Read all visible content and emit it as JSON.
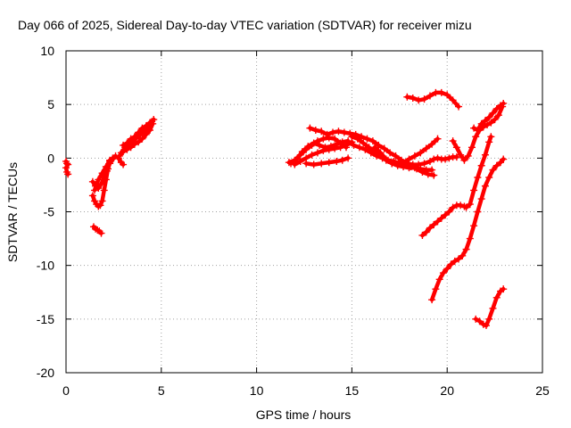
{
  "chart_data": {
    "type": "scatter",
    "title": "Day 066 of 2025, Sidereal Day-to-day VTEC variation (SDTVAR) for receiver mizu",
    "xlabel": "GPS time / hours",
    "ylabel": "SDTVAR / TECUs",
    "xlim": [
      0,
      25
    ],
    "ylim": [
      -20,
      10
    ],
    "x_ticks": [
      0,
      5,
      10,
      15,
      20,
      25
    ],
    "y_ticks": [
      10,
      5,
      0,
      -5,
      -10,
      -15,
      -20
    ],
    "grid": true,
    "marker": "+",
    "series_color": "#ff0000",
    "tracks": [
      [
        [
          0.0,
          -0.3
        ],
        [
          0.05,
          -0.5
        ],
        [
          0.1,
          -0.6
        ],
        [
          0.0,
          -0.9
        ],
        [
          0.05,
          -1.3
        ],
        [
          0.1,
          -1.5
        ]
      ],
      [
        [
          1.45,
          -6.4
        ],
        [
          1.55,
          -6.6
        ],
        [
          1.65,
          -6.7
        ],
        [
          1.75,
          -6.8
        ],
        [
          1.85,
          -7.0
        ]
      ],
      [
        [
          1.4,
          -3.5
        ],
        [
          1.5,
          -4.0
        ],
        [
          1.6,
          -4.3
        ],
        [
          1.7,
          -4.5
        ],
        [
          1.8,
          -4.4
        ],
        [
          1.9,
          -4.0
        ],
        [
          2.0,
          -3.0
        ],
        [
          2.1,
          -2.0
        ],
        [
          2.2,
          -1.0
        ],
        [
          2.3,
          -0.3
        ],
        [
          2.45,
          0.0
        ],
        [
          2.6,
          0.2
        ],
        [
          2.75,
          0.0
        ],
        [
          2.9,
          -0.4
        ],
        [
          3.0,
          -0.6
        ]
      ],
      [
        [
          1.4,
          -2.2
        ],
        [
          1.55,
          -2.6
        ],
        [
          1.7,
          -2.8
        ],
        [
          1.85,
          -2.4
        ],
        [
          2.0,
          -1.8
        ],
        [
          2.15,
          -1.2
        ],
        [
          2.3,
          -0.5
        ],
        [
          2.5,
          0.0
        ]
      ],
      [
        [
          1.5,
          -3.0
        ],
        [
          1.7,
          -2.0
        ],
        [
          1.9,
          -1.4
        ],
        [
          2.1,
          -0.8
        ],
        [
          2.3,
          -0.2
        ]
      ],
      [
        [
          2.9,
          0.5
        ],
        [
          3.1,
          1.0
        ],
        [
          3.3,
          1.2
        ],
        [
          3.5,
          1.6
        ],
        [
          3.7,
          1.9
        ],
        [
          3.9,
          2.2
        ],
        [
          4.1,
          2.5
        ],
        [
          4.3,
          2.9
        ],
        [
          4.5,
          3.4
        ]
      ],
      [
        [
          2.8,
          0.2
        ],
        [
          3.0,
          0.6
        ],
        [
          3.2,
          0.8
        ],
        [
          3.4,
          1.0
        ],
        [
          3.6,
          1.3
        ],
        [
          3.8,
          1.5
        ],
        [
          4.0,
          1.8
        ],
        [
          4.2,
          2.2
        ],
        [
          4.4,
          2.6
        ],
        [
          4.55,
          3.2
        ]
      ],
      [
        [
          3.0,
          1.2
        ],
        [
          3.2,
          1.4
        ],
        [
          3.4,
          1.8
        ],
        [
          3.6,
          2.0
        ],
        [
          3.8,
          2.4
        ],
        [
          4.0,
          2.8
        ],
        [
          4.2,
          3.0
        ],
        [
          4.4,
          3.3
        ],
        [
          4.6,
          3.6
        ]
      ],
      [
        [
          11.7,
          -0.4
        ],
        [
          12.0,
          -0.2
        ],
        [
          12.3,
          0.3
        ],
        [
          12.6,
          0.8
        ],
        [
          12.9,
          1.2
        ],
        [
          13.2,
          1.6
        ],
        [
          13.5,
          1.8
        ],
        [
          13.8,
          1.9
        ],
        [
          14.1,
          1.8
        ],
        [
          14.4,
          1.4
        ],
        [
          14.7,
          1.0
        ]
      ],
      [
        [
          11.8,
          -0.5
        ],
        [
          12.1,
          -0.1
        ],
        [
          12.4,
          0.6
        ],
        [
          12.7,
          1.1
        ],
        [
          13.0,
          1.4
        ],
        [
          13.3,
          1.2
        ],
        [
          13.6,
          1.0
        ],
        [
          13.9,
          1.1
        ],
        [
          14.2,
          1.3
        ],
        [
          14.5,
          1.5
        ],
        [
          14.8,
          1.6
        ]
      ],
      [
        [
          12.0,
          -0.6
        ],
        [
          12.3,
          -0.3
        ],
        [
          12.6,
          0.0
        ],
        [
          12.9,
          0.3
        ],
        [
          13.2,
          0.5
        ],
        [
          13.5,
          0.7
        ],
        [
          13.8,
          0.8
        ],
        [
          14.1,
          0.9
        ],
        [
          14.4,
          1.0
        ],
        [
          14.7,
          1.2
        ],
        [
          15.0,
          1.5
        ]
      ],
      [
        [
          12.6,
          -0.5
        ],
        [
          13.0,
          -0.6
        ],
        [
          13.4,
          -0.5
        ],
        [
          13.8,
          -0.4
        ],
        [
          14.2,
          -0.3
        ],
        [
          14.5,
          -0.2
        ],
        [
          14.8,
          0.0
        ]
      ],
      [
        [
          12.8,
          2.8
        ],
        [
          13.1,
          2.6
        ],
        [
          13.4,
          2.5
        ],
        [
          13.7,
          2.2
        ],
        [
          14.0,
          2.4
        ],
        [
          14.3,
          2.5
        ],
        [
          14.6,
          2.4
        ],
        [
          14.9,
          2.3
        ],
        [
          15.2,
          2.2
        ],
        [
          15.5,
          2.0
        ],
        [
          15.8,
          1.8
        ],
        [
          16.1,
          1.6
        ],
        [
          16.4,
          1.2
        ],
        [
          16.7,
          0.9
        ],
        [
          17.0,
          0.5
        ],
        [
          17.3,
          0.2
        ],
        [
          17.6,
          -0.2
        ],
        [
          17.9,
          -0.5
        ],
        [
          18.2,
          -0.6
        ],
        [
          18.5,
          -0.6
        ],
        [
          18.8,
          -0.5
        ],
        [
          19.1,
          -0.3
        ],
        [
          19.3,
          -0.1
        ],
        [
          19.5,
          0.0
        ],
        [
          19.7,
          -0.1
        ],
        [
          19.9,
          -0.1
        ],
        [
          20.1,
          0.0
        ],
        [
          20.3,
          0.1
        ],
        [
          20.5,
          0.1
        ]
      ],
      [
        [
          15.0,
          2.0
        ],
        [
          15.3,
          1.8
        ],
        [
          15.6,
          1.4
        ],
        [
          15.9,
          1.0
        ],
        [
          16.2,
          0.6
        ],
        [
          16.5,
          0.2
        ],
        [
          16.8,
          -0.2
        ],
        [
          17.1,
          -0.5
        ],
        [
          17.4,
          -0.7
        ],
        [
          17.7,
          -0.8
        ],
        [
          18.0,
          -0.9
        ],
        [
          18.3,
          -0.9
        ],
        [
          18.6,
          -1.0
        ],
        [
          18.9,
          -1.1
        ],
        [
          19.2,
          -1.1
        ]
      ],
      [
        [
          14.8,
          1.5
        ],
        [
          15.1,
          1.2
        ],
        [
          15.4,
          1.0
        ],
        [
          15.7,
          0.8
        ],
        [
          16.0,
          0.5
        ],
        [
          16.3,
          0.2
        ],
        [
          16.6,
          0.0
        ],
        [
          16.9,
          -0.2
        ],
        [
          17.2,
          -0.3
        ],
        [
          17.5,
          -0.5
        ],
        [
          17.8,
          -0.6
        ],
        [
          18.1,
          -0.8
        ],
        [
          18.4,
          -1.0
        ],
        [
          18.7,
          -1.3
        ],
        [
          19.0,
          -1.5
        ],
        [
          19.3,
          -1.6
        ]
      ],
      [
        [
          16.2,
          1.0
        ],
        [
          16.5,
          0.5
        ],
        [
          16.8,
          -0.1
        ],
        [
          17.1,
          -0.5
        ],
        [
          17.4,
          -0.6
        ],
        [
          17.7,
          -0.4
        ],
        [
          18.0,
          -0.1
        ],
        [
          18.3,
          0.2
        ],
        [
          18.6,
          0.5
        ],
        [
          18.9,
          0.9
        ],
        [
          19.2,
          1.3
        ],
        [
          19.5,
          1.8
        ]
      ],
      [
        [
          17.9,
          5.7
        ],
        [
          18.2,
          5.6
        ],
        [
          18.5,
          5.4
        ],
        [
          18.8,
          5.5
        ],
        [
          19.1,
          5.8
        ],
        [
          19.4,
          6.1
        ],
        [
          19.7,
          6.1
        ],
        [
          20.0,
          5.9
        ],
        [
          20.3,
          5.4
        ],
        [
          20.6,
          4.8
        ]
      ],
      [
        [
          20.3,
          1.6
        ],
        [
          20.5,
          1.0
        ],
        [
          20.7,
          0.3
        ],
        [
          20.9,
          -0.2
        ],
        [
          21.1,
          0.2
        ],
        [
          21.3,
          1.0
        ],
        [
          21.5,
          2.0
        ],
        [
          21.7,
          2.6
        ],
        [
          21.9,
          2.9
        ],
        [
          22.1,
          3.1
        ],
        [
          22.3,
          3.3
        ],
        [
          22.5,
          3.6
        ],
        [
          22.7,
          4.0
        ],
        [
          22.9,
          4.8
        ]
      ],
      [
        [
          21.4,
          2.8
        ],
        [
          21.6,
          2.6
        ],
        [
          21.8,
          3.2
        ],
        [
          22.0,
          3.5
        ],
        [
          22.2,
          3.8
        ],
        [
          22.4,
          4.2
        ],
        [
          22.6,
          4.6
        ],
        [
          22.8,
          4.9
        ],
        [
          22.95,
          5.1
        ]
      ],
      [
        [
          18.7,
          -7.2
        ],
        [
          18.9,
          -6.9
        ],
        [
          19.1,
          -6.5
        ],
        [
          19.3,
          -6.2
        ],
        [
          19.5,
          -5.9
        ],
        [
          19.7,
          -5.6
        ],
        [
          19.9,
          -5.3
        ],
        [
          20.1,
          -5.0
        ],
        [
          20.3,
          -4.6
        ],
        [
          20.5,
          -4.4
        ],
        [
          20.7,
          -4.4
        ],
        [
          20.9,
          -4.5
        ],
        [
          21.0,
          -4.6
        ],
        [
          21.2,
          -4.3
        ],
        [
          21.4,
          -3.0
        ],
        [
          21.6,
          -1.8
        ],
        [
          21.8,
          -0.7
        ],
        [
          22.0,
          0.3
        ],
        [
          22.2,
          1.5
        ],
        [
          22.3,
          2.0
        ]
      ],
      [
        [
          19.2,
          -13.2
        ],
        [
          19.4,
          -12.2
        ],
        [
          19.6,
          -11.3
        ],
        [
          19.8,
          -10.7
        ],
        [
          20.0,
          -10.3
        ],
        [
          20.2,
          -9.9
        ],
        [
          20.4,
          -9.6
        ],
        [
          20.6,
          -9.4
        ],
        [
          20.8,
          -9.1
        ],
        [
          21.0,
          -8.5
        ],
        [
          21.2,
          -7.5
        ],
        [
          21.4,
          -6.3
        ],
        [
          21.6,
          -5.0
        ],
        [
          21.8,
          -3.8
        ],
        [
          22.0,
          -2.6
        ],
        [
          22.2,
          -1.8
        ],
        [
          22.4,
          -1.1
        ],
        [
          22.6,
          -0.7
        ],
        [
          22.8,
          -0.4
        ],
        [
          22.95,
          -0.1
        ]
      ],
      [
        [
          21.5,
          -15.0
        ],
        [
          21.7,
          -15.2
        ],
        [
          21.9,
          -15.5
        ],
        [
          22.05,
          -15.6
        ],
        [
          22.2,
          -15.0
        ],
        [
          22.4,
          -14.0
        ],
        [
          22.6,
          -13.0
        ],
        [
          22.8,
          -12.4
        ],
        [
          22.95,
          -12.2
        ]
      ]
    ]
  }
}
